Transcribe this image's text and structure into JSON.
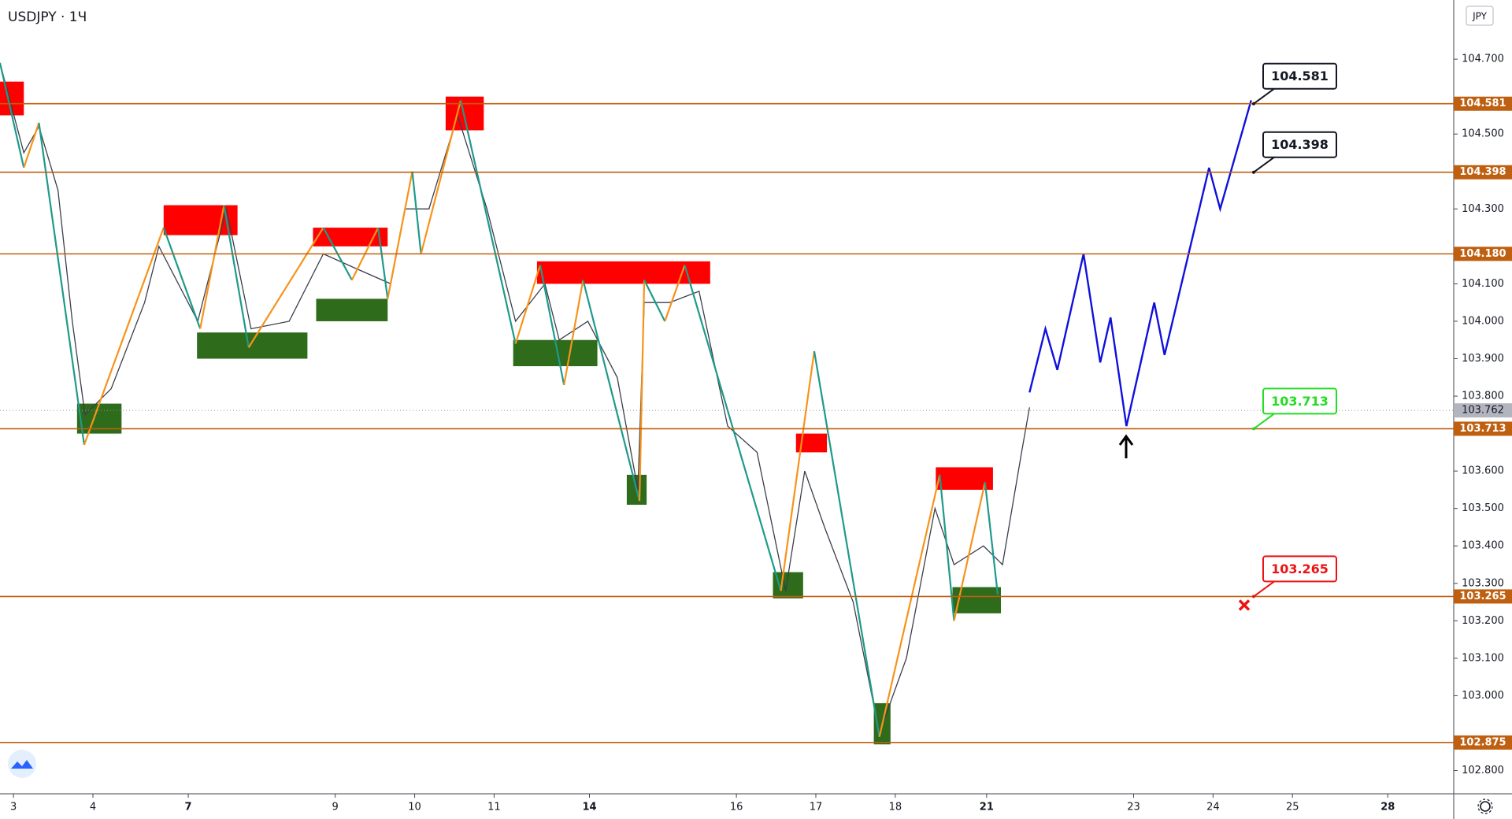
{
  "chart_data": {
    "type": "candlestick-annotated",
    "title": "USDJPY · 1Ч",
    "currency": "JPY",
    "xlim": [
      -0.17,
      18.13
    ],
    "ylim": [
      102.738,
      104.858
    ],
    "xticks": [
      {
        "value": 0,
        "label": "3"
      },
      {
        "value": 1,
        "label": "4"
      },
      {
        "value": 2.2,
        "label": "7",
        "bold": true
      },
      {
        "value": 4.05,
        "label": "9"
      },
      {
        "value": 5.05,
        "label": "10"
      },
      {
        "value": 6.05,
        "label": "11"
      },
      {
        "value": 7.25,
        "label": "14",
        "bold": true
      },
      {
        "value": 9.1,
        "label": "16"
      },
      {
        "value": 10.1,
        "label": "17"
      },
      {
        "value": 11.1,
        "label": "18"
      },
      {
        "value": 12.25,
        "label": "21",
        "bold": true
      },
      {
        "value": 14.1,
        "label": "23"
      },
      {
        "value": 15.1,
        "label": "24"
      },
      {
        "value": 16.1,
        "label": "25"
      },
      {
        "value": 17.3,
        "label": "28",
        "bold": true
      }
    ],
    "yticks": [
      {
        "value": 104.7,
        "label": "104.700"
      },
      {
        "value": 104.5,
        "label": "104.500"
      },
      {
        "value": 104.3,
        "label": "104.300"
      },
      {
        "value": 104.1,
        "label": "104.100"
      },
      {
        "value": 104,
        "label": "104.000"
      },
      {
        "value": 103.9,
        "label": "103.900"
      },
      {
        "value": 103.8,
        "label": "103.800"
      },
      {
        "value": 103.6,
        "label": "103.600"
      },
      {
        "value": 103.5,
        "label": "103.500"
      },
      {
        "value": 103.4,
        "label": "103.400"
      },
      {
        "value": 103.3,
        "label": "103.300"
      },
      {
        "value": 103.2,
        "label": "103.200"
      },
      {
        "value": 103.1,
        "label": "103.100"
      },
      {
        "value": 103,
        "label": "103.000"
      },
      {
        "value": 102.8,
        "label": "102.800"
      }
    ],
    "price": {
      "color": "#3a3f4b",
      "x": [
        -0.17,
        0.13,
        0.32,
        0.56,
        0.74,
        0.9,
        1.23,
        1.65,
        1.83,
        2.32,
        2.68,
        2.99,
        3.47,
        3.9,
        4.32,
        4.75,
        4.93,
        5.23,
        5.59,
        5.96,
        6.32,
        6.69,
        6.87,
        7.23,
        7.6,
        7.86,
        7.94,
        8.26,
        8.63,
        8.99,
        9.36,
        9.72,
        9.96,
        10.21,
        10.57,
        10.9,
        11.24,
        11.6,
        11.84,
        12.21,
        12.45,
        12.69,
        12.79
      ],
      "y": [
        104.69,
        104.45,
        104.52,
        104.35,
        104.0,
        103.75,
        103.82,
        104.05,
        104.2,
        104.0,
        104.3,
        103.98,
        104.0,
        104.18,
        104.14,
        104.1,
        104.3,
        104.3,
        104.55,
        104.3,
        104.0,
        104.1,
        103.95,
        104.0,
        103.85,
        103.55,
        104.05,
        104.05,
        104.08,
        103.72,
        103.65,
        103.28,
        103.6,
        103.45,
        103.25,
        102.9,
        103.1,
        103.5,
        103.35,
        103.4,
        103.35,
        103.65,
        103.77
      ]
    },
    "zigzag": {
      "up_color": "#f7931a",
      "down_color": "#1e9a8a",
      "x": [
        -0.17,
        0.13,
        0.32,
        0.89,
        1.89,
        2.35,
        2.65,
        2.96,
        3.9,
        4.26,
        4.59,
        4.71,
        5.02,
        5.13,
        5.63,
        6.32,
        6.63,
        6.93,
        7.17,
        7.88,
        7.94,
        8.2,
        8.45,
        9.66,
        10.08,
        10.9,
        11.66,
        11.84,
        12.23,
        12.39
      ],
      "y": [
        104.69,
        104.41,
        104.53,
        103.67,
        104.25,
        103.98,
        104.31,
        103.93,
        104.25,
        104.11,
        104.25,
        104.06,
        104.4,
        104.18,
        104.59,
        103.94,
        104.15,
        103.83,
        104.11,
        103.52,
        104.11,
        104.0,
        104.15,
        103.28,
        103.92,
        102.89,
        103.59,
        103.2,
        103.57,
        103.27
      ]
    },
    "zones": [
      {
        "x": [
          -0.17,
          0.13
        ],
        "y": [
          104.55,
          104.64
        ],
        "color": "#ff0000"
      },
      {
        "x": [
          5.44,
          5.92
        ],
        "y": [
          104.51,
          104.6
        ],
        "color": "#ff0000"
      },
      {
        "x": [
          1.89,
          2.82
        ],
        "y": [
          104.23,
          104.31
        ],
        "color": "#ff0000"
      },
      {
        "x": [
          3.77,
          4.71
        ],
        "y": [
          104.2,
          104.25
        ],
        "color": "#ff0000"
      },
      {
        "x": [
          6.59,
          8.77
        ],
        "y": [
          104.1,
          104.16
        ],
        "color": "#ff0000"
      },
      {
        "x": [
          9.85,
          10.24
        ],
        "y": [
          103.65,
          103.7
        ],
        "color": "#ff0000"
      },
      {
        "x": [
          11.61,
          12.33
        ],
        "y": [
          103.55,
          103.61
        ],
        "color": "#ff0000"
      },
      {
        "x": [
          0.8,
          1.36
        ],
        "y": [
          103.7,
          103.78
        ],
        "color": "#2e6b1a"
      },
      {
        "x": [
          2.31,
          3.7
        ],
        "y": [
          103.9,
          103.97
        ],
        "color": "#2e6b1a"
      },
      {
        "x": [
          3.81,
          4.71
        ],
        "y": [
          104.0,
          104.06
        ],
        "color": "#2e6b1a"
      },
      {
        "x": [
          6.29,
          7.35
        ],
        "y": [
          103.88,
          103.95
        ],
        "color": "#2e6b1a"
      },
      {
        "x": [
          7.72,
          7.97
        ],
        "y": [
          103.51,
          103.59
        ],
        "color": "#2e6b1a"
      },
      {
        "x": [
          9.56,
          9.94
        ],
        "y": [
          103.26,
          103.33
        ],
        "color": "#2e6b1a"
      },
      {
        "x": [
          10.83,
          11.04
        ],
        "y": [
          102.87,
          102.98
        ],
        "color": "#2e6b1a"
      },
      {
        "x": [
          11.82,
          12.43
        ],
        "y": [
          103.22,
          103.29
        ],
        "color": "#2e6b1a"
      }
    ],
    "projection": {
      "color": "#1010dd",
      "x": [
        12.79,
        12.99,
        13.14,
        13.47,
        13.68,
        13.81,
        14.01,
        14.36,
        14.49,
        15.05,
        15.19,
        15.58
      ],
      "y": [
        103.81,
        103.98,
        103.87,
        104.18,
        103.89,
        104.01,
        103.72,
        104.05,
        103.91,
        104.41,
        104.3,
        104.59
      ]
    },
    "levels": [
      104.581,
      104.398,
      {
        "value": 104.18,
        "label": "104.180"
      },
      103.713,
      103.265,
      102.875
    ],
    "level_color": "#bf5f10",
    "current_price": 103.762,
    "callouts": [
      {
        "value": 104.581,
        "color": "#131722"
      },
      {
        "value": 104.398,
        "color": "#131722"
      },
      {
        "value": 103.713,
        "color": "#22dd22"
      },
      {
        "value": 103.265,
        "color": "#ee1111"
      }
    ]
  }
}
